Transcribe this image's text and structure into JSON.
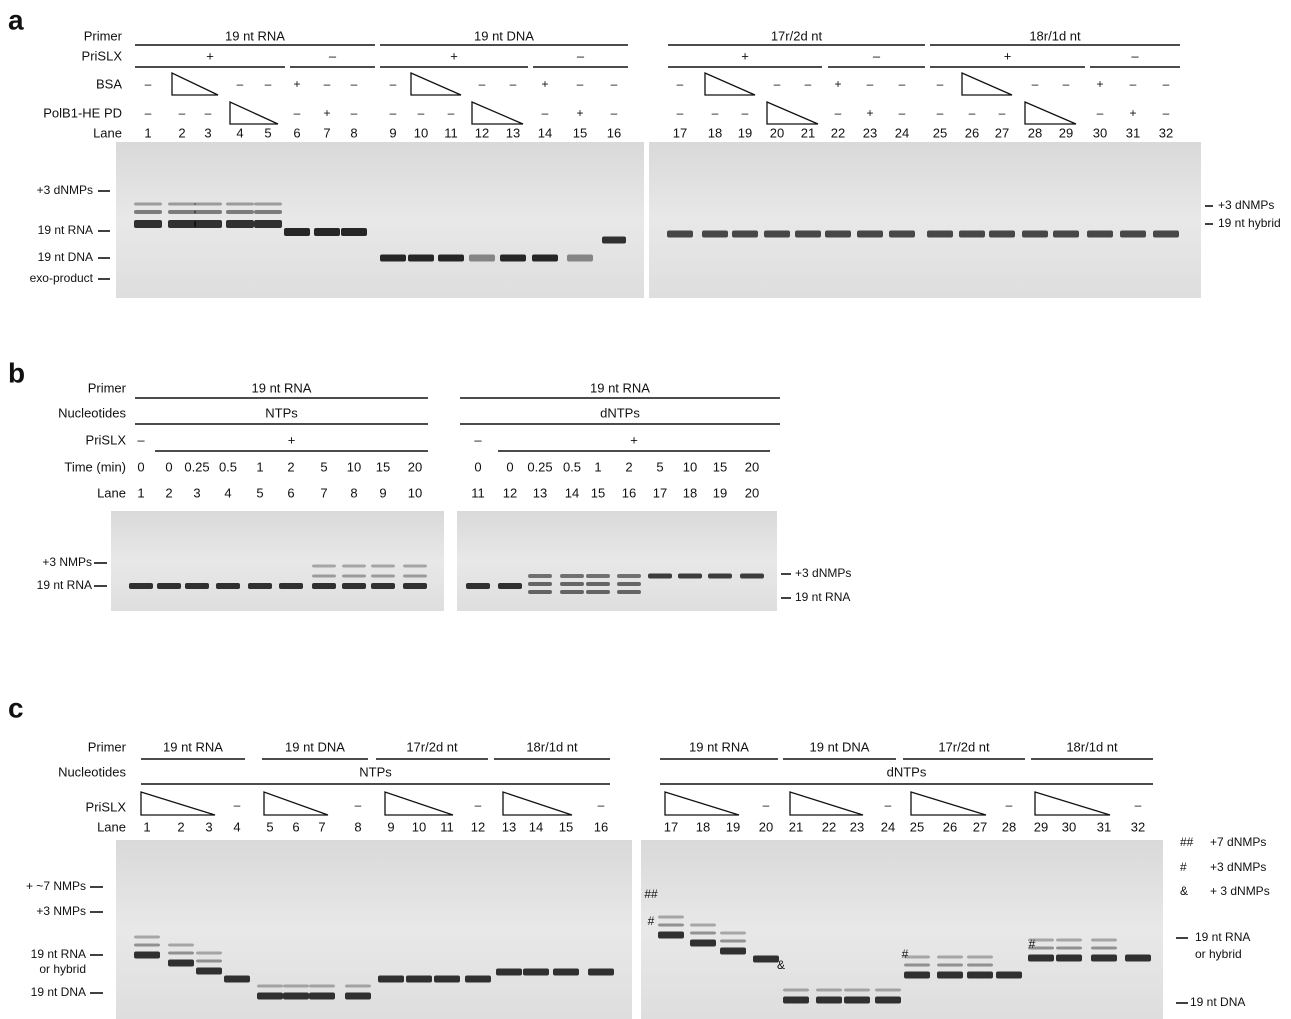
{
  "panel_a": {
    "label": "a",
    "row_labels": [
      "Primer",
      "PriSLX",
      "BSA",
      "PolB1-HE PD",
      "Lane"
    ],
    "primer": [
      "19 nt RNA",
      "19 nt DNA",
      "17r/2d nt",
      "18r/1d nt"
    ],
    "prislx": [
      "+",
      "–",
      "+",
      "–",
      "+",
      "–",
      "+",
      "–"
    ],
    "bsa": [
      "–",
      null,
      null,
      "–",
      "–",
      "+",
      "–",
      "–",
      "–",
      null,
      null,
      "–",
      "–",
      "+",
      "–",
      "–",
      "–",
      null,
      null,
      "–",
      "–",
      "+",
      "–",
      "–",
      "–",
      null,
      null,
      "–",
      "–",
      "+",
      "–",
      "–"
    ],
    "polb1": [
      "–",
      "–",
      "–",
      null,
      null,
      "–",
      "+",
      "–",
      "–",
      "–",
      "–",
      null,
      null,
      "–",
      "+",
      "–",
      "–",
      "–",
      "–",
      null,
      null,
      "–",
      "+",
      "–",
      "–",
      "–",
      "–",
      null,
      null,
      "–",
      "+",
      "–"
    ],
    "lanes": [
      1,
      2,
      3,
      4,
      5,
      6,
      7,
      8,
      9,
      10,
      11,
      12,
      13,
      14,
      15,
      16,
      17,
      18,
      19,
      20,
      21,
      22,
      23,
      24,
      25,
      26,
      27,
      28,
      29,
      30,
      31,
      32
    ],
    "markers_left": [
      "+3 dNMPs",
      "19 nt RNA",
      "19 nt DNA",
      "exo-product"
    ],
    "markers_right": [
      "+3 dNMPs",
      "19 nt  hybrid"
    ]
  },
  "panel_b": {
    "label": "b",
    "row_labels": [
      "Primer",
      "Nucleotides",
      "PriSLX",
      "Time (min)",
      "Lane"
    ],
    "primer": [
      "19 nt RNA",
      "19 nt RNA"
    ],
    "nucleotides": [
      "NTPs",
      "dNTPs"
    ],
    "prislx": [
      "–",
      "+",
      "–",
      "+"
    ],
    "time": [
      0,
      0,
      0.25,
      0.5,
      1,
      2,
      5,
      10,
      15,
      20,
      0,
      0,
      0.25,
      0.5,
      1,
      2,
      5,
      10,
      15,
      20
    ],
    "lanes": [
      1,
      2,
      3,
      4,
      5,
      6,
      7,
      8,
      9,
      10,
      11,
      12,
      13,
      14,
      15,
      16,
      17,
      18,
      19,
      20
    ],
    "markers_left": [
      "+3 NMPs",
      "19 nt RNA"
    ],
    "markers_right": [
      "+3 dNMPs",
      "19 nt RNA"
    ]
  },
  "panel_c": {
    "label": "c",
    "row_labels": [
      "Primer",
      "Nucleotides",
      "PriSLX",
      "Lane"
    ],
    "primer": [
      "19 nt RNA",
      "19 nt DNA",
      "17r/2d nt",
      "18r/1d nt",
      "19 nt RNA",
      "19 nt DNA",
      "17r/2d nt",
      "18r/1d nt"
    ],
    "nucleotides": [
      "NTPs",
      "dNTPs"
    ],
    "prislx": [
      null,
      null,
      null,
      "–",
      null,
      null,
      null,
      "–",
      null,
      null,
      null,
      "–",
      null,
      null,
      null,
      "–",
      null,
      null,
      null,
      "–",
      null,
      null,
      null,
      "–",
      null,
      null,
      null,
      "–",
      null,
      null,
      null,
      "–"
    ],
    "lanes": [
      1,
      2,
      3,
      4,
      5,
      6,
      7,
      8,
      9,
      10,
      11,
      12,
      13,
      14,
      15,
      16,
      17,
      18,
      19,
      20,
      21,
      22,
      23,
      24,
      25,
      26,
      27,
      28,
      29,
      30,
      31,
      32
    ],
    "markers_left": [
      "+ ~7 NMPs",
      "+3 NMPs",
      "19 nt RNA",
      "or hybrid",
      "19 nt DNA"
    ],
    "legend": [
      {
        "symbol": "##",
        "text": "+7 dNMPs"
      },
      {
        "symbol": "#",
        "text": "+3 dNMPs"
      },
      {
        "symbol": "&",
        "text": "+ 3 dNMPs"
      }
    ],
    "markers_right": [
      "19 nt RNA",
      "or hybrid",
      "19 nt DNA"
    ],
    "annotations": [
      "##",
      "#",
      "&",
      "#",
      "#"
    ]
  }
}
